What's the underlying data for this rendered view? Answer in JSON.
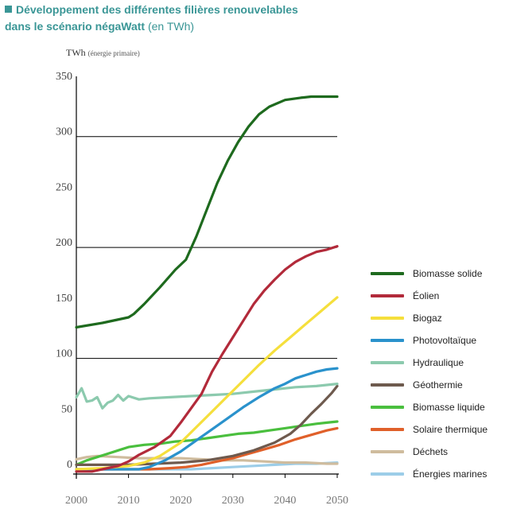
{
  "header": {
    "title_line1": "Développement des différentes filières renouvelables",
    "title_line2": "dans le scénario négaWatt",
    "title_unit": "(en TWh)"
  },
  "yaxis": {
    "unit": "TWh",
    "unit_sub": "(énergie primaire)"
  },
  "chart_data": {
    "type": "line",
    "title": "Développement des différentes filières renouvelables dans le scénario négaWatt (en TWh)",
    "ylabel": "TWh (énergie primaire)",
    "xlabel": "",
    "xlim": [
      2000,
      2050
    ],
    "ylim": [
      0,
      350
    ],
    "x_ticks": [
      2000,
      2010,
      2020,
      2030,
      2040,
      2050
    ],
    "y_ticks": [
      0,
      50,
      100,
      150,
      200,
      250,
      300,
      350
    ],
    "gridlines_y": [
      100,
      200,
      300
    ],
    "legend_position": "right",
    "series": [
      {
        "name": "Biomasse solide",
        "color": "#1e6a1e",
        "points": [
          [
            2000,
            128
          ],
          [
            2005,
            132
          ],
          [
            2010,
            137
          ],
          [
            2011,
            140
          ],
          [
            2013,
            149
          ],
          [
            2016,
            164
          ],
          [
            2019,
            180
          ],
          [
            2021,
            189
          ],
          [
            2023,
            210
          ],
          [
            2025,
            234
          ],
          [
            2027,
            258
          ],
          [
            2029,
            278
          ],
          [
            2031,
            295
          ],
          [
            2033,
            309
          ],
          [
            2035,
            320
          ],
          [
            2037,
            327
          ],
          [
            2040,
            333
          ],
          [
            2043,
            335
          ],
          [
            2045,
            336
          ],
          [
            2048,
            336
          ],
          [
            2050,
            336
          ]
        ]
      },
      {
        "name": "Éolien",
        "color": "#b22a3a",
        "points": [
          [
            2000,
            -2
          ],
          [
            2003,
            -2
          ],
          [
            2005,
            0
          ],
          [
            2008,
            3
          ],
          [
            2010,
            7
          ],
          [
            2012,
            13
          ],
          [
            2015,
            20
          ],
          [
            2018,
            30
          ],
          [
            2020,
            42
          ],
          [
            2022,
            55
          ],
          [
            2024,
            68
          ],
          [
            2025,
            78
          ],
          [
            2026,
            88
          ],
          [
            2028,
            104
          ],
          [
            2030,
            119
          ],
          [
            2032,
            134
          ],
          [
            2034,
            149
          ],
          [
            2036,
            161
          ],
          [
            2038,
            171
          ],
          [
            2040,
            180
          ],
          [
            2042,
            187
          ],
          [
            2044,
            192
          ],
          [
            2046,
            196
          ],
          [
            2048,
            198
          ],
          [
            2050,
            201
          ]
        ]
      },
      {
        "name": "Biogaz",
        "color": "#f5df3c",
        "points": [
          [
            2000,
            0
          ],
          [
            2005,
            1
          ],
          [
            2010,
            3
          ],
          [
            2013,
            6
          ],
          [
            2016,
            12
          ],
          [
            2020,
            24
          ],
          [
            2023,
            38
          ],
          [
            2026,
            52
          ],
          [
            2029,
            66
          ],
          [
            2032,
            80
          ],
          [
            2035,
            94
          ],
          [
            2038,
            107
          ],
          [
            2041,
            119
          ],
          [
            2044,
            131
          ],
          [
            2047,
            143
          ],
          [
            2050,
            155
          ]
        ]
      },
      {
        "name": "Photovoltaïque",
        "color": "#2a92cc",
        "points": [
          [
            2000,
            0
          ],
          [
            2012,
            0
          ],
          [
            2014,
            2
          ],
          [
            2017,
            8
          ],
          [
            2020,
            16
          ],
          [
            2023,
            26
          ],
          [
            2026,
            36
          ],
          [
            2029,
            46
          ],
          [
            2032,
            56
          ],
          [
            2035,
            65
          ],
          [
            2038,
            73
          ],
          [
            2040,
            77
          ],
          [
            2042,
            82
          ],
          [
            2044,
            85
          ],
          [
            2046,
            88
          ],
          [
            2048,
            90
          ],
          [
            2050,
            91
          ]
        ]
      },
      {
        "name": "Hydraulique",
        "color": "#8ccaae",
        "points": [
          [
            2000,
            65
          ],
          [
            2001,
            73
          ],
          [
            2002,
            61
          ],
          [
            2003,
            62
          ],
          [
            2004,
            65
          ],
          [
            2005,
            55
          ],
          [
            2006,
            60
          ],
          [
            2007,
            62
          ],
          [
            2008,
            67
          ],
          [
            2009,
            62
          ],
          [
            2010,
            66
          ],
          [
            2012,
            63
          ],
          [
            2014,
            64
          ],
          [
            2018,
            65
          ],
          [
            2022,
            66
          ],
          [
            2026,
            67
          ],
          [
            2030,
            68
          ],
          [
            2034,
            70
          ],
          [
            2038,
            72
          ],
          [
            2042,
            74
          ],
          [
            2046,
            75
          ],
          [
            2050,
            77
          ]
        ]
      },
      {
        "name": "Géothermie",
        "color": "#6e5a4e",
        "points": [
          [
            2000,
            4
          ],
          [
            2005,
            4
          ],
          [
            2010,
            4
          ],
          [
            2015,
            5
          ],
          [
            2020,
            6
          ],
          [
            2025,
            8
          ],
          [
            2030,
            12
          ],
          [
            2034,
            17
          ],
          [
            2038,
            24
          ],
          [
            2041,
            32
          ],
          [
            2043,
            40
          ],
          [
            2045,
            50
          ],
          [
            2047,
            59
          ],
          [
            2049,
            69
          ],
          [
            2050,
            75
          ]
        ]
      },
      {
        "name": "Biomasse liquide",
        "color": "#4abf3e",
        "points": [
          [
            2000,
            4
          ],
          [
            2002,
            8
          ],
          [
            2004,
            11
          ],
          [
            2006,
            14
          ],
          [
            2008,
            17
          ],
          [
            2010,
            20
          ],
          [
            2013,
            22
          ],
          [
            2016,
            23
          ],
          [
            2019,
            25
          ],
          [
            2022,
            26
          ],
          [
            2025,
            28
          ],
          [
            2028,
            30
          ],
          [
            2031,
            32
          ],
          [
            2034,
            33
          ],
          [
            2037,
            35
          ],
          [
            2040,
            37
          ],
          [
            2043,
            39
          ],
          [
            2046,
            41
          ],
          [
            2048,
            42
          ],
          [
            2050,
            43
          ]
        ]
      },
      {
        "name": "Solaire thermique",
        "color": "#e0602a",
        "points": [
          [
            2000,
            0
          ],
          [
            2014,
            0
          ],
          [
            2018,
            1
          ],
          [
            2021,
            2
          ],
          [
            2024,
            4
          ],
          [
            2027,
            7
          ],
          [
            2030,
            10
          ],
          [
            2033,
            14
          ],
          [
            2036,
            18
          ],
          [
            2039,
            22
          ],
          [
            2042,
            27
          ],
          [
            2045,
            31
          ],
          [
            2048,
            35
          ],
          [
            2050,
            37
          ]
        ]
      },
      {
        "name": "Déchets",
        "color": "#cfbc9e",
        "points": [
          [
            2000,
            9
          ],
          [
            2002,
            11
          ],
          [
            2004,
            12
          ],
          [
            2008,
            11
          ],
          [
            2012,
            10
          ],
          [
            2016,
            10
          ],
          [
            2020,
            10
          ],
          [
            2024,
            9
          ],
          [
            2028,
            8
          ],
          [
            2032,
            8
          ],
          [
            2036,
            7
          ],
          [
            2040,
            6
          ],
          [
            2044,
            6
          ],
          [
            2048,
            5
          ],
          [
            2050,
            5
          ]
        ]
      },
      {
        "name": "Énergies marines",
        "color": "#9ccde8",
        "points": [
          [
            2000,
            0
          ],
          [
            2022,
            0
          ],
          [
            2026,
            1
          ],
          [
            2030,
            2
          ],
          [
            2034,
            3
          ],
          [
            2038,
            4
          ],
          [
            2042,
            5
          ],
          [
            2046,
            5
          ],
          [
            2050,
            6
          ]
        ]
      }
    ]
  }
}
